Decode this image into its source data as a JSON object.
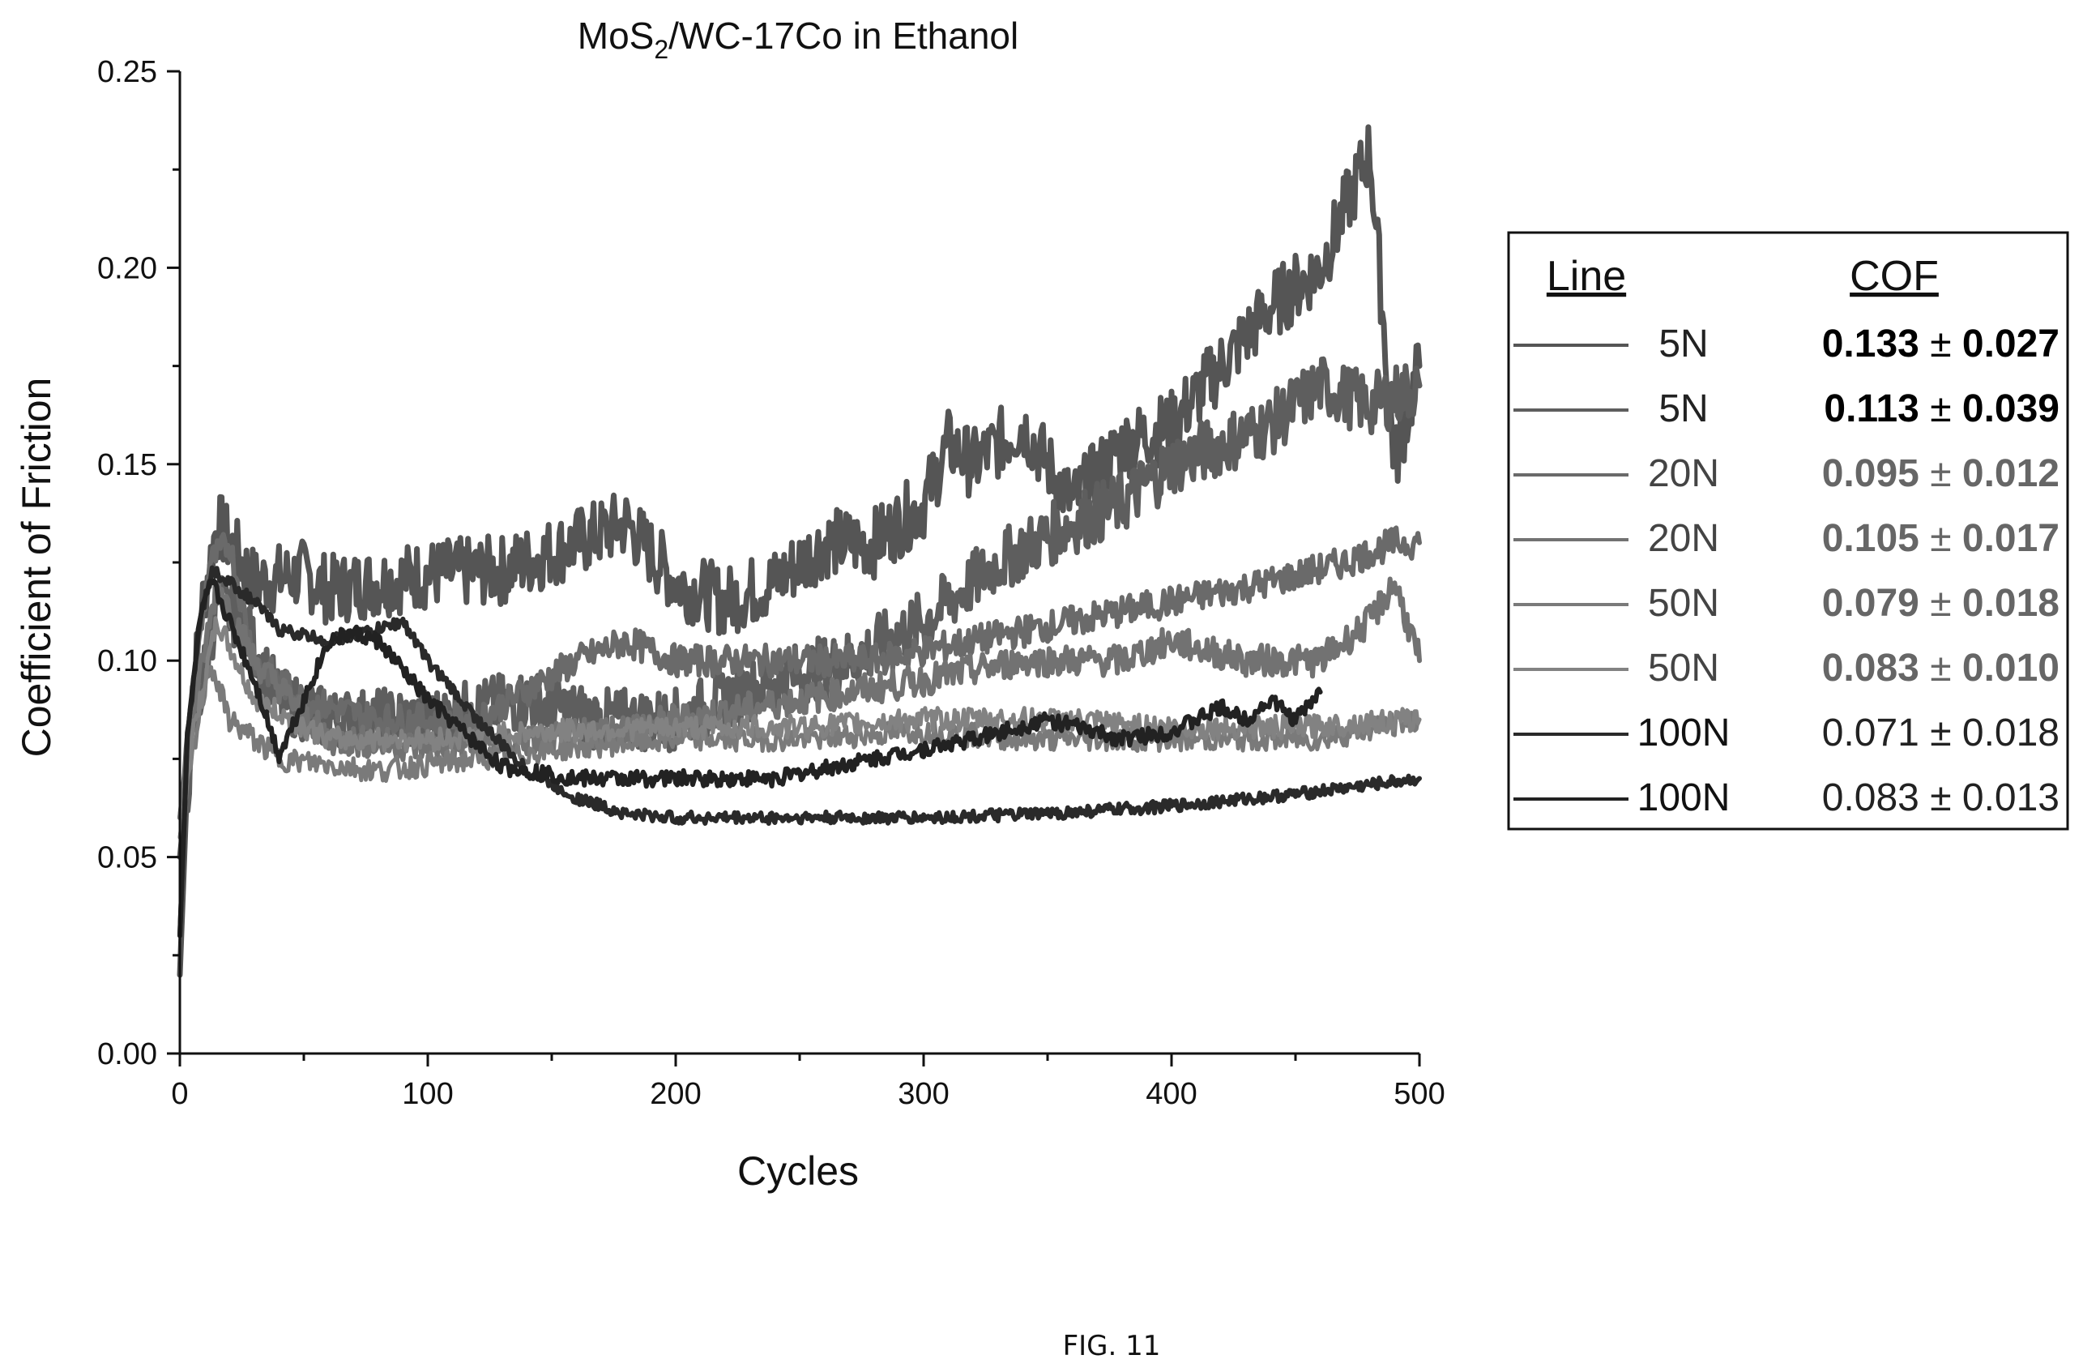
{
  "figure_caption": "FIG. 11",
  "chart_data": {
    "type": "line",
    "title_main": "MoS",
    "title_sub": "2",
    "title_rest": "/WC-17Co in Ethanol",
    "xlabel": "Cycles",
    "ylabel": "Coefficient of Friction",
    "xlim": [
      0,
      500
    ],
    "ylim": [
      0,
      0.25
    ],
    "xticks": [
      0,
      100,
      200,
      300,
      400,
      500
    ],
    "xtick_labels": [
      "0",
      "100",
      "200",
      "300",
      "400",
      "500"
    ],
    "yticks": [
      0,
      0.05,
      0.1,
      0.15,
      0.2,
      0.25
    ],
    "ytick_labels": [
      "0.00",
      "0.05",
      "0.10",
      "0.15",
      "0.20",
      "0.25"
    ],
    "grid": false,
    "legend": {
      "placement": "right",
      "header_line": "Line",
      "header_cof": "COF",
      "entries": [
        {
          "line": "5N",
          "cof": "0.133",
          "pm": "±",
          "err": "0.027",
          "bold": true
        },
        {
          "line": "5N",
          "cof": "0.113",
          "pm": "±",
          "err": "0.039",
          "bold": true
        },
        {
          "line": "20N",
          "cof": "0.095",
          "pm": "±",
          "err": "0.012",
          "bold": true
        },
        {
          "line": "20N",
          "cof": "0.105",
          "pm": "±",
          "err": "0.017",
          "bold": true
        },
        {
          "line": "50N",
          "cof": "0.079",
          "pm": "±",
          "err": "0.018",
          "bold": true
        },
        {
          "line": "50N",
          "cof": "0.083",
          "pm": "±",
          "err": "0.010",
          "bold": true
        },
        {
          "line": "100N",
          "cof": "0.071",
          "pm": "±",
          "err": "0.018",
          "bold": false
        },
        {
          "line": "100N",
          "cof": "0.083",
          "pm": "±",
          "err": "0.013",
          "bold": false
        }
      ]
    },
    "series": [
      {
        "name": "5N",
        "color": "#555555",
        "width": 7,
        "noise": 0.009,
        "x": [
          0,
          3,
          8,
          15,
          20,
          30,
          50,
          60,
          80,
          100,
          130,
          160,
          180,
          200,
          220,
          240,
          260,
          280,
          300,
          310,
          320,
          340,
          360,
          380,
          400,
          420,
          440,
          460,
          480,
          490,
          500
        ],
        "y": [
          0.02,
          0.07,
          0.11,
          0.135,
          0.13,
          0.12,
          0.122,
          0.118,
          0.12,
          0.122,
          0.123,
          0.13,
          0.135,
          0.12,
          0.115,
          0.12,
          0.13,
          0.13,
          0.14,
          0.155,
          0.15,
          0.16,
          0.14,
          0.155,
          0.16,
          0.175,
          0.19,
          0.2,
          0.23,
          0.15,
          0.175
        ]
      },
      {
        "name": "5N",
        "color": "#5e5e5e",
        "width": 7,
        "noise": 0.008,
        "x": [
          0,
          5,
          15,
          25,
          40,
          60,
          100,
          140,
          170,
          200,
          240,
          270,
          300,
          330,
          360,
          380,
          400,
          420,
          440,
          460,
          480,
          500
        ],
        "y": [
          0.05,
          0.08,
          0.115,
          0.11,
          0.09,
          0.085,
          0.085,
          0.09,
          0.085,
          0.085,
          0.095,
          0.1,
          0.11,
          0.125,
          0.135,
          0.14,
          0.15,
          0.155,
          0.16,
          0.17,
          0.165,
          0.17
        ]
      },
      {
        "name": "20N",
        "color": "#6a6a6a",
        "width": 6,
        "noise": 0.004,
        "x": [
          0,
          5,
          12,
          20,
          30,
          50,
          80,
          120,
          160,
          180,
          200,
          240,
          280,
          320,
          360,
          400,
          440,
          470,
          490,
          500
        ],
        "y": [
          0.06,
          0.09,
          0.125,
          0.13,
          0.1,
          0.09,
          0.085,
          0.085,
          0.1,
          0.105,
          0.1,
          0.1,
          0.1,
          0.105,
          0.11,
          0.115,
          0.12,
          0.125,
          0.13,
          0.13
        ]
      },
      {
        "name": "20N",
        "color": "#727272",
        "width": 6,
        "noise": 0.004,
        "x": [
          0,
          5,
          15,
          30,
          60,
          100,
          150,
          200,
          250,
          300,
          340,
          380,
          400,
          430,
          460,
          480,
          490,
          500
        ],
        "y": [
          0.06,
          0.085,
          0.12,
          0.1,
          0.08,
          0.078,
          0.08,
          0.085,
          0.09,
          0.095,
          0.1,
          0.1,
          0.105,
          0.1,
          0.1,
          0.11,
          0.12,
          0.1
        ]
      },
      {
        "name": "50N",
        "color": "#7a7a7a",
        "width": 5,
        "noise": 0.003,
        "x": [
          0,
          5,
          12,
          20,
          40,
          80,
          120,
          160,
          200,
          250,
          300,
          340,
          380,
          420,
          460,
          500
        ],
        "y": [
          0.055,
          0.075,
          0.1,
          0.085,
          0.075,
          0.072,
          0.075,
          0.078,
          0.08,
          0.08,
          0.082,
          0.08,
          0.08,
          0.08,
          0.08,
          0.085
        ]
      },
      {
        "name": "50N",
        "color": "#828282",
        "width": 5,
        "noise": 0.003,
        "x": [
          0,
          5,
          15,
          30,
          60,
          100,
          150,
          200,
          250,
          300,
          350,
          400,
          450,
          500
        ],
        "y": [
          0.055,
          0.08,
          0.11,
          0.09,
          0.08,
          0.08,
          0.082,
          0.083,
          0.083,
          0.085,
          0.085,
          0.083,
          0.083,
          0.085
        ]
      },
      {
        "name": "100N",
        "color": "#2a2a2a",
        "width": 6,
        "noise": 0.0015,
        "x": [
          0,
          3,
          8,
          13,
          20,
          30,
          40,
          60,
          80,
          90,
          100,
          120,
          140,
          160,
          180,
          200,
          250,
          300,
          350,
          400,
          450,
          500
        ],
        "y": [
          0.03,
          0.08,
          0.11,
          0.123,
          0.12,
          0.115,
          0.108,
          0.105,
          0.108,
          0.11,
          0.1,
          0.085,
          0.072,
          0.065,
          0.061,
          0.06,
          0.06,
          0.06,
          0.061,
          0.063,
          0.066,
          0.07
        ]
      },
      {
        "name": "100N",
        "color": "#222222",
        "width": 6,
        "noise": 0.002,
        "x": [
          0,
          3,
          8,
          13,
          20,
          30,
          40,
          50,
          60,
          70,
          80,
          100,
          130,
          160,
          200,
          240,
          280,
          320,
          350,
          380,
          400,
          420,
          430,
          440,
          450,
          460
        ],
        "y": [
          0.03,
          0.08,
          0.11,
          0.12,
          0.11,
          0.095,
          0.076,
          0.09,
          0.105,
          0.107,
          0.105,
          0.09,
          0.073,
          0.07,
          0.07,
          0.07,
          0.075,
          0.08,
          0.085,
          0.08,
          0.082,
          0.088,
          0.085,
          0.09,
          0.085,
          0.092
        ]
      }
    ]
  }
}
